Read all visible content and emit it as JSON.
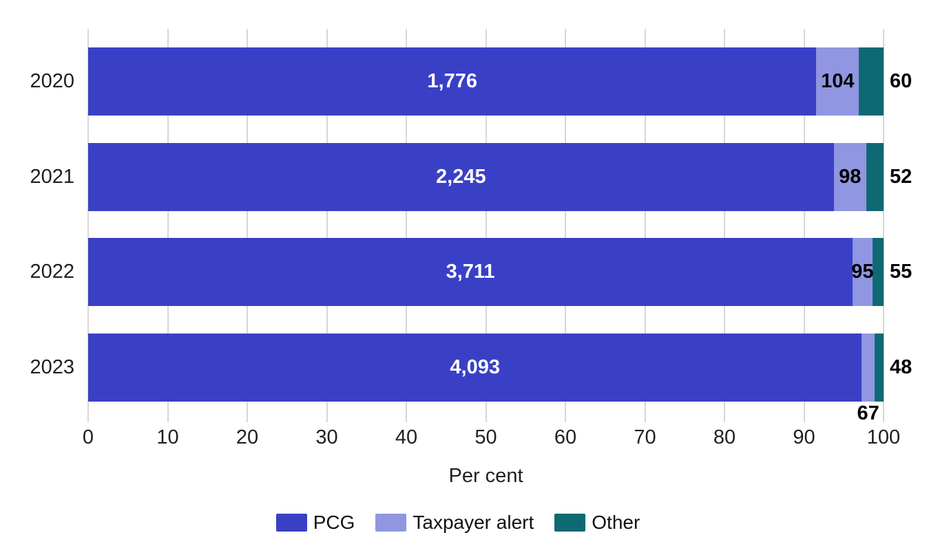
{
  "figure": {
    "background": "#ffffff",
    "grid_color": "#d7d7d7",
    "axis_text_color": "#1f1f1f"
  },
  "chart_data": {
    "type": "bar",
    "orientation": "horizontal",
    "stacked": true,
    "normalized": "percent_of_row_total",
    "title": "",
    "xlabel": "Per cent",
    "ylabel": "",
    "xlim": [
      0,
      100
    ],
    "x_ticks": [
      0,
      10,
      20,
      30,
      40,
      50,
      60,
      70,
      80,
      90,
      100
    ],
    "grid": "vertical",
    "legend_position": "bottom",
    "categories": [
      "2020",
      "2021",
      "2022",
      "2023"
    ],
    "series": [
      {
        "name": "PCG",
        "color": "#3a40c6",
        "values": [
          1776,
          2245,
          3711,
          4093
        ],
        "labels": [
          "1,776",
          "2,245",
          "3,711",
          "4,093"
        ],
        "label_style": "inside-white"
      },
      {
        "name": "Taxpayer alert",
        "color": "#9096e2",
        "values": [
          104,
          98,
          95,
          67
        ],
        "labels": [
          "104",
          "98",
          "95",
          "67"
        ],
        "label_style": "inside-black",
        "label_below_bar": [
          false,
          false,
          false,
          true
        ]
      },
      {
        "name": "Other",
        "color": "#0e6973",
        "values": [
          60,
          52,
          55,
          48
        ],
        "labels": [
          "60",
          "52",
          "55",
          "48"
        ],
        "label_style": "outside-right"
      }
    ]
  },
  "legend": {
    "items": [
      {
        "label": "PCG",
        "color": "#3a40c6"
      },
      {
        "label": "Taxpayer alert",
        "color": "#9096e2"
      },
      {
        "label": "Other",
        "color": "#0e6973"
      }
    ]
  }
}
